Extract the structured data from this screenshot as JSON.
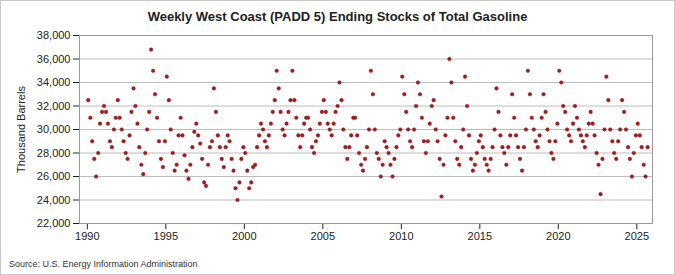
{
  "chart_data": {
    "type": "scatter",
    "title": "Weekly West Coast (PADD 5) Ending Stocks of Total Gasoline",
    "y_label": "Thousand Barrels",
    "source": "Source: U.S. Energy Information Administration",
    "color": "#9b1c1c",
    "marker": "circle",
    "grid": true,
    "xlim": [
      1989.5,
      2026
    ],
    "xticks": [
      1990,
      1995,
      2000,
      2005,
      2010,
      2015,
      2020,
      2025
    ],
    "ylim": [
      22000,
      38000
    ],
    "yticks": [
      {
        "value": 22000,
        "label": "22,000"
      },
      {
        "value": 24000,
        "label": "24,000"
      },
      {
        "value": 26000,
        "label": "26,000"
      },
      {
        "value": 28000,
        "label": "28,000"
      },
      {
        "value": 30000,
        "label": "30,000"
      },
      {
        "value": 32000,
        "label": "32,000"
      },
      {
        "value": 34000,
        "label": "34,000"
      },
      {
        "value": 36000,
        "label": "36,000"
      },
      {
        "value": 38000,
        "label": "38,000"
      }
    ],
    "x": [
      1990.06,
      1990.19,
      1990.31,
      1990.44,
      1990.56,
      1990.69,
      1990.81,
      1990.94,
      1991.06,
      1991.19,
      1991.31,
      1991.44,
      1991.56,
      1991.69,
      1991.81,
      1991.94,
      1992.06,
      1992.19,
      1992.31,
      1992.44,
      1992.56,
      1992.69,
      1992.81,
      1992.94,
      1993.06,
      1993.19,
      1993.31,
      1993.44,
      1993.56,
      1993.69,
      1993.81,
      1993.94,
      1994.06,
      1994.19,
      1994.31,
      1994.44,
      1994.56,
      1994.69,
      1994.81,
      1994.94,
      1995.06,
      1995.19,
      1995.31,
      1995.44,
      1995.56,
      1995.69,
      1995.81,
      1995.94,
      1996.06,
      1996.19,
      1996.31,
      1996.44,
      1996.56,
      1996.69,
      1996.81,
      1996.94,
      1997.06,
      1997.19,
      1997.31,
      1997.44,
      1997.56,
      1997.69,
      1997.81,
      1997.94,
      1998.06,
      1998.19,
      1998.31,
      1998.44,
      1998.56,
      1998.69,
      1998.81,
      1998.94,
      1999.06,
      1999.19,
      1999.31,
      1999.44,
      1999.56,
      1999.69,
      1999.81,
      1999.94,
      2000.06,
      2000.19,
      2000.31,
      2000.44,
      2000.56,
      2000.69,
      2000.81,
      2000.94,
      2001.06,
      2001.19,
      2001.31,
      2001.44,
      2001.56,
      2001.69,
      2001.81,
      2001.94,
      2002.06,
      2002.19,
      2002.31,
      2002.44,
      2002.56,
      2002.69,
      2002.81,
      2002.94,
      2003.06,
      2003.19,
      2003.31,
      2003.44,
      2003.56,
      2003.69,
      2003.81,
      2003.94,
      2004.06,
      2004.19,
      2004.31,
      2004.44,
      2004.56,
      2004.69,
      2004.81,
      2004.94,
      2005.06,
      2005.19,
      2005.31,
      2005.44,
      2005.56,
      2005.69,
      2005.81,
      2005.94,
      2006.06,
      2006.19,
      2006.31,
      2006.44,
      2006.56,
      2006.69,
      2006.81,
      2006.94,
      2007.06,
      2007.19,
      2007.31,
      2007.44,
      2007.56,
      2007.69,
      2007.81,
      2007.94,
      2008.06,
      2008.19,
      2008.31,
      2008.44,
      2008.56,
      2008.69,
      2008.81,
      2008.94,
      2009.06,
      2009.19,
      2009.31,
      2009.44,
      2009.56,
      2009.69,
      2009.81,
      2009.94,
      2010.06,
      2010.19,
      2010.31,
      2010.44,
      2010.56,
      2010.69,
      2010.81,
      2010.94,
      2011.06,
      2011.19,
      2011.31,
      2011.44,
      2011.56,
      2011.69,
      2011.81,
      2011.94,
      2012.06,
      2012.19,
      2012.31,
      2012.44,
      2012.56,
      2012.69,
      2012.81,
      2012.94,
      2013.06,
      2013.19,
      2013.31,
      2013.44,
      2013.56,
      2013.69,
      2013.81,
      2013.94,
      2014.06,
      2014.19,
      2014.31,
      2014.44,
      2014.56,
      2014.69,
      2014.81,
      2014.94,
      2015.06,
      2015.19,
      2015.31,
      2015.44,
      2015.56,
      2015.69,
      2015.81,
      2015.94,
      2016.06,
      2016.19,
      2016.31,
      2016.44,
      2016.56,
      2016.69,
      2016.81,
      2016.94,
      2017.06,
      2017.19,
      2017.31,
      2017.44,
      2017.56,
      2017.69,
      2017.81,
      2017.94,
      2018.06,
      2018.19,
      2018.31,
      2018.44,
      2018.56,
      2018.69,
      2018.81,
      2018.94,
      2019.06,
      2019.19,
      2019.31,
      2019.44,
      2019.56,
      2019.69,
      2019.81,
      2019.94,
      2020.06,
      2020.19,
      2020.31,
      2020.44,
      2020.56,
      2020.69,
      2020.81,
      2020.94,
      2021.06,
      2021.19,
      2021.31,
      2021.44,
      2021.56,
      2021.69,
      2021.81,
      2021.94,
      2022.06,
      2022.19,
      2022.31,
      2022.44,
      2022.56,
      2022.69,
      2022.81,
      2022.94,
      2023.06,
      2023.19,
      2023.31,
      2023.44,
      2023.56,
      2023.69,
      2023.81,
      2023.94,
      2024.06,
      2024.19,
      2024.31,
      2024.44,
      2024.56,
      2024.69,
      2024.81,
      2024.94,
      2025.06,
      2025.19,
      2025.31,
      2025.44,
      2025.56,
      2025.69
    ],
    "values": [
      32500,
      31000,
      29000,
      27500,
      26000,
      28000,
      30500,
      31500,
      32000,
      31500,
      30500,
      29000,
      28500,
      30000,
      31000,
      32500,
      31000,
      30000,
      29000,
      28000,
      27500,
      29500,
      31500,
      33500,
      32000,
      30500,
      28500,
      27000,
      26200,
      28000,
      30000,
      31500,
      36800,
      35000,
      33000,
      31000,
      29000,
      27500,
      26800,
      29000,
      34500,
      32500,
      30000,
      28000,
      26500,
      27000,
      29500,
      31000,
      29500,
      27800,
      26500,
      25800,
      27000,
      28500,
      29800,
      30500,
      29500,
      28800,
      27500,
      25500,
      25200,
      27000,
      28500,
      29000,
      33500,
      31500,
      29500,
      28500,
      27500,
      26800,
      28500,
      29500,
      29000,
      27500,
      26500,
      25000,
      24000,
      25500,
      27500,
      28500,
      28000,
      26500,
      25000,
      25500,
      26800,
      27000,
      28500,
      29500,
      30500,
      30000,
      29000,
      28500,
      29500,
      30500,
      31500,
      32500,
      35000,
      33500,
      31500,
      30000,
      29500,
      30500,
      31500,
      32500,
      35000,
      32500,
      31000,
      29500,
      28500,
      29500,
      30500,
      31000,
      31000,
      30000,
      28500,
      28000,
      29000,
      29500,
      30500,
      31500,
      32500,
      31500,
      30500,
      30000,
      29500,
      30500,
      31500,
      32000,
      34000,
      32500,
      30000,
      28500,
      27500,
      28500,
      29500,
      31000,
      31000,
      29500,
      28000,
      27000,
      26500,
      27500,
      28500,
      30000,
      35000,
      33000,
      30000,
      28000,
      27500,
      26000,
      27000,
      29000,
      28500,
      28000,
      27000,
      26000,
      27500,
      28500,
      29500,
      30000,
      34500,
      33000,
      31500,
      30000,
      29000,
      28500,
      30000,
      32000,
      34000,
      33000,
      31000,
      29000,
      28000,
      29000,
      30500,
      32000,
      32500,
      30000,
      29000,
      27500,
      24300,
      27000,
      29500,
      31000,
      36000,
      34000,
      31000,
      29000,
      27500,
      27000,
      28500,
      30000,
      34500,
      32000,
      29500,
      27500,
      26500,
      27000,
      28000,
      29000,
      29500,
      28500,
      27500,
      27000,
      26500,
      27500,
      28500,
      30000,
      33500,
      31500,
      29500,
      28500,
      28000,
      27000,
      28500,
      29500,
      33000,
      31000,
      29500,
      28500,
      27500,
      26500,
      28500,
      30000,
      35000,
      33000,
      31000,
      30000,
      29000,
      28500,
      29500,
      31000,
      33000,
      31500,
      30000,
      29000,
      28000,
      27500,
      29000,
      30500,
      35000,
      34000,
      32000,
      31500,
      30000,
      29500,
      29000,
      30500,
      32000,
      31000,
      30000,
      29500,
      29000,
      28500,
      29500,
      30500,
      31500,
      30500,
      29500,
      28000,
      27000,
      24500,
      27500,
      30000,
      34500,
      32500,
      30000,
      29000,
      28000,
      27500,
      29000,
      30000,
      32500,
      31500,
      30000,
      28500,
      27500,
      26000,
      28000,
      29500,
      30500,
      29500,
      28500,
      27000,
      26000,
      28500
    ]
  }
}
